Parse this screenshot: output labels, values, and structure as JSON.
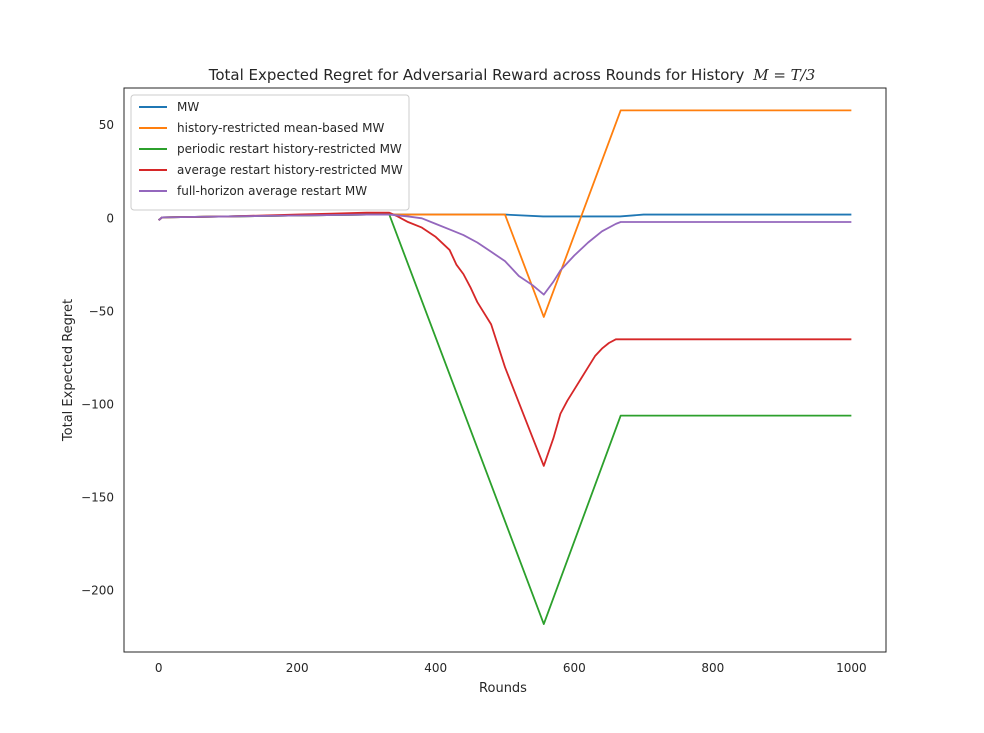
{
  "chart_data": {
    "type": "line",
    "title": "Total Expected Regret for Adversarial Reward across Rounds for History",
    "title_math": "M = T/3",
    "xlabel": "Rounds",
    "ylabel": "Total Expected Regret",
    "xlim": [
      -50,
      1050
    ],
    "ylim": [
      -233,
      70
    ],
    "xticks": [
      0,
      200,
      400,
      600,
      800,
      1000
    ],
    "yticks": [
      50,
      0,
      -50,
      -100,
      -150,
      -200
    ],
    "xtick_labels": [
      "0",
      "200",
      "400",
      "600",
      "800",
      "1000"
    ],
    "ytick_labels": [
      "50",
      "0",
      "−50",
      "−100",
      "−150",
      "−200"
    ],
    "grid": false,
    "legend_position": "upper-left",
    "series": [
      {
        "name": "MW",
        "color": "#1f77b4",
        "x": [
          0,
          5,
          100,
          200,
          300,
          333,
          400,
          500,
          555,
          600,
          666,
          700,
          800,
          1000
        ],
        "y": [
          -1,
          0.5,
          1,
          1.5,
          2,
          2,
          2,
          2,
          1,
          1,
          1,
          2,
          2,
          2
        ]
      },
      {
        "name": "history-restricted mean-based MW",
        "color": "#ff7f0e",
        "x": [
          0,
          5,
          100,
          200,
          300,
          333,
          400,
          500,
          556,
          667,
          700,
          800,
          1000
        ],
        "y": [
          -1,
          0.5,
          1,
          1.5,
          2,
          2,
          2,
          2,
          -53,
          58,
          58,
          58,
          58
        ]
      },
      {
        "name": "periodic restart history-restricted MW",
        "color": "#2ca02c",
        "x": [
          0,
          5,
          100,
          200,
          300,
          333,
          556,
          667,
          700,
          800,
          1000
        ],
        "y": [
          -1,
          0.5,
          1,
          1.5,
          2,
          2,
          -218,
          -106,
          -106,
          -106,
          -106
        ]
      },
      {
        "name": "average restart history-restricted MW",
        "color": "#d62728",
        "x": [
          0,
          5,
          100,
          150,
          200,
          250,
          300,
          333,
          345,
          360,
          380,
          400,
          420,
          430,
          440,
          450,
          460,
          480,
          500,
          520,
          540,
          556,
          570,
          580,
          590,
          600,
          610,
          620,
          630,
          640,
          650,
          660,
          667,
          700,
          800,
          1000
        ],
        "y": [
          -1,
          0.5,
          1,
          1.5,
          2,
          2.5,
          3,
          3,
          1,
          -2,
          -5,
          -10,
          -17,
          -25,
          -30,
          -37,
          -45,
          -57,
          -80,
          -99,
          -118,
          -133,
          -118,
          -105,
          -98,
          -92,
          -86,
          -80,
          -74,
          -70,
          -67,
          -65,
          -65,
          -65,
          -65,
          -65
        ]
      },
      {
        "name": "full-horizon average restart MW",
        "color": "#9467bd",
        "x": [
          0,
          5,
          100,
          200,
          300,
          333,
          360,
          380,
          400,
          420,
          440,
          460,
          480,
          500,
          520,
          540,
          556,
          570,
          580,
          600,
          620,
          640,
          660,
          667,
          700,
          800,
          1000
        ],
        "y": [
          -1,
          0.5,
          1,
          1.5,
          2,
          2,
          1,
          0,
          -3,
          -6,
          -9,
          -13,
          -18,
          -23,
          -31,
          -36,
          -41,
          -34,
          -28,
          -20,
          -13,
          -7,
          -3,
          -2,
          -2,
          -2,
          -2
        ]
      }
    ]
  }
}
